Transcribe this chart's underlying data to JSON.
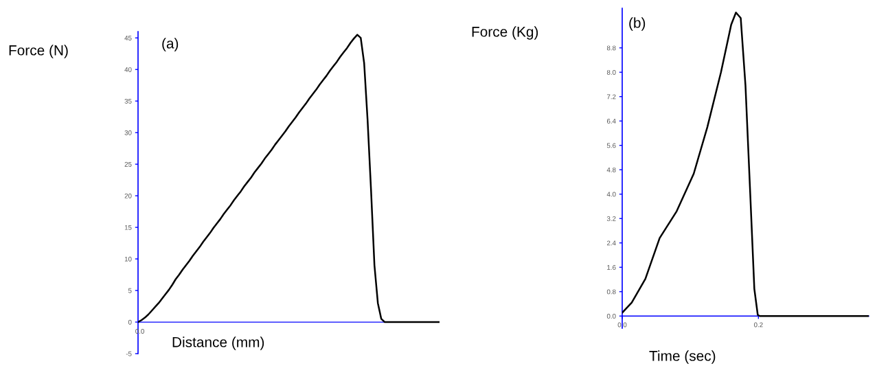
{
  "chart_data": [
    {
      "type": "line",
      "title": "(a)",
      "xlabel": "Distance (mm)",
      "ylabel": "Force (N)",
      "annotations": [
        "0.0"
      ],
      "ref_lines": [
        {
          "axis": "y",
          "value": 0,
          "color": "#0000ff"
        }
      ],
      "categories": [
        null,
        null,
        null,
        null,
        null,
        null,
        null,
        null,
        null,
        null,
        null,
        null,
        null,
        null,
        null,
        null,
        null,
        null,
        null,
        null,
        null,
        null,
        null,
        null,
        null,
        null,
        null,
        null,
        null,
        null,
        null,
        null,
        null,
        null,
        null,
        null,
        null,
        null,
        null,
        null,
        null,
        null,
        null,
        null,
        null,
        null,
        null,
        null,
        null,
        null,
        null,
        null,
        null,
        null,
        null,
        null,
        null,
        null,
        null,
        null,
        null,
        null,
        null,
        null,
        null,
        null,
        null,
        null,
        null,
        null,
        null,
        null,
        null,
        null,
        null,
        null,
        null,
        null,
        null,
        null,
        null,
        null,
        null,
        null,
        null,
        null,
        null,
        null,
        null
      ],
      "series": [
        {
          "color": "#000000",
          "values": [
            0,
            0.3,
            0.7,
            1.2,
            1.8,
            2.4,
            3.0,
            3.7,
            4.4,
            5.1,
            5.9,
            6.8,
            7.5,
            8.3,
            9.0,
            9.7,
            10.5,
            11.2,
            11.9,
            12.7,
            13.4,
            14.1,
            14.9,
            15.6,
            16.3,
            17.1,
            17.8,
            18.5,
            19.3,
            20.0,
            20.7,
            21.5,
            22.2,
            22.9,
            23.7,
            24.4,
            25.1,
            25.9,
            26.6,
            27.3,
            28.1,
            28.8,
            29.5,
            30.2,
            31.0,
            31.7,
            32.4,
            33.2,
            33.9,
            34.6,
            35.4,
            36.1,
            36.8,
            37.6,
            38.3,
            39.0,
            39.8,
            40.5,
            41.2,
            42.0,
            42.7,
            43.4,
            44.2,
            44.9,
            45.5,
            45.0,
            41,
            32,
            21,
            9,
            3.0,
            0.5,
            0,
            0,
            0,
            0,
            0,
            0,
            0,
            0,
            0,
            0,
            0,
            0,
            0,
            0,
            0,
            0,
            0
          ]
        }
      ],
      "ylim": [
        -5,
        46
      ],
      "yticks": [
        -5,
        0,
        5,
        10,
        15,
        20,
        25,
        30,
        35,
        40,
        45
      ],
      "grid": false,
      "marker": "none",
      "line_style": "solid"
    },
    {
      "type": "line",
      "title": "(b)",
      "xlabel": "Time (sec)",
      "ylabel": "Force (Kg)",
      "x": [
        0,
        0.014,
        0.034,
        0.055,
        0.08,
        0.105,
        0.125,
        0.145,
        0.16,
        0.167,
        0.174,
        0.181,
        0.188,
        0.194,
        0.199,
        0.202,
        0.362
      ],
      "series": [
        {
          "color": "#000000",
          "values": [
            0.11,
            0.44,
            1.22,
            2.56,
            3.44,
            4.67,
            6.2,
            8.0,
            9.56,
            9.96,
            9.78,
            7.56,
            4.0,
            0.89,
            0.04,
            0,
            0
          ]
        }
      ],
      "xlim": [
        0,
        0.362
      ],
      "xticks": [
        {
          "value": 0,
          "label": "0.0"
        },
        {
          "value": 0.2,
          "label": "0.2"
        }
      ],
      "ylim": [
        -0.4,
        10.1
      ],
      "yticks": [
        {
          "value": 0,
          "label": "0.0"
        },
        0.8,
        1.6,
        2.4,
        3.2,
        {
          "value": 4,
          "label": "4.0"
        },
        4.8,
        5.6,
        6.4,
        7.2,
        {
          "value": 8,
          "label": "8.0"
        },
        8.8
      ],
      "grid": false,
      "marker": "none",
      "line_style": "solid"
    }
  ]
}
